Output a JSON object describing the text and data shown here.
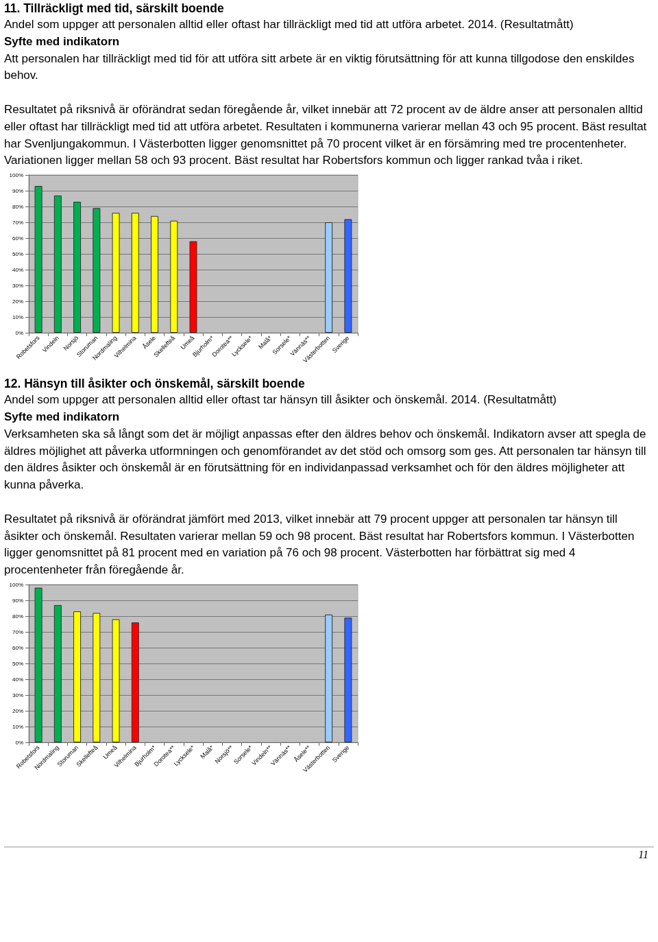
{
  "chart_data": [
    {
      "type": "bar",
      "title": "11. Tillräckligt med tid, särskilt boende",
      "subtitle": "Andel som uppger att personalen alltid eller oftast har tillräckligt med tid att utföra arbetet. 2014. (Resultatmått)",
      "annotations": [
        "Syfte med indikatorn",
        "Att personalen har tillräckligt med tid för att utföra sitt arbete är en viktig förutsättning för att kunna tillgodose den enskildes behov.",
        "Resultatet på riksnivå är oförändrat sedan föregående år, vilket innebär att 72 procent av de äldre anser att personalen alltid eller oftast har tillräckligt med tid att utföra arbetet. Resultaten i kommunerna varierar mellan 43 och 95 procent. Bäst resultat har Svenljungakommun. I Västerbotten ligger genomsnittet på 70 procent vilket är en försämring med tre procentenheter. Variationen ligger mellan 58 och 93 procent. Bäst resultat har Robertsfors kommun och ligger rankad tvåa i riket."
      ],
      "categories": [
        "Robetsfors",
        "Vindeln",
        "Norsjö",
        "Storuman",
        "Nordmaling",
        "Vilhelmina",
        "Åsele",
        "Skellefteå",
        "Umeå",
        "Bjurholm*",
        "Dorotea**",
        "Lycksele*",
        "Malå*",
        "Sorsele*",
        "Vännäs**",
        "Västerbotten",
        "Sverige"
      ],
      "values": [
        93,
        87,
        83,
        79,
        76,
        76,
        74,
        71,
        58,
        null,
        null,
        null,
        null,
        null,
        null,
        70,
        72
      ],
      "colors": [
        "#00b050",
        "#00b050",
        "#00b050",
        "#00b050",
        "#ffff00",
        "#ffff00",
        "#ffff00",
        "#ffff00",
        "#ff0000",
        "#ff0000",
        "#ff0000",
        "#ff0000",
        "#ff0000",
        "#ff0000",
        "#ff0000",
        "#99ccff",
        "#3366ff"
      ],
      "ylim": [
        0,
        100
      ],
      "yticks": [
        {
          "value": 0,
          "label": "0%"
        },
        {
          "value": 10,
          "label": "10%"
        },
        {
          "value": 20,
          "label": "20%"
        },
        {
          "value": 30,
          "label": "30%"
        },
        {
          "value": 40,
          "label": "40%"
        },
        {
          "value": 50,
          "label": "50%"
        },
        {
          "value": 60,
          "label": "60%"
        },
        {
          "value": 70,
          "label": "70%"
        },
        {
          "value": 80,
          "label": "80%"
        },
        {
          "value": 90,
          "label": "90%"
        },
        {
          "value": 100,
          "label": "100%"
        }
      ],
      "grid": "y"
    },
    {
      "type": "bar",
      "title": "12. Hänsyn till åsikter och önskemål, särskilt boende",
      "subtitle": "Andel som uppger att personalen alltid eller oftast tar hänsyn till åsikter och önskemål. 2014. (Resultatmått)",
      "annotations": [
        "Syfte med indikatorn",
        "Verksamheten ska så långt som det är möjligt anpassas efter den äldres behov och önskemål. Indikatorn avser att spegla de äldres möjlighet att påverka utformningen och genomförandet av det stöd och omsorg som ges. Att personalen tar hänsyn till den äldres åsikter och önskemål är en förutsättning för en individanpassad verksamhet och för den äldres möjligheter att kunna påverka.",
        "Resultatet på riksnivå är oförändrat jämfört med 2013, vilket innebär att 79 procent uppger att personalen tar hänsyn till åsikter och önskemål. Resultaten varierar mellan 59 och 98 procent. Bäst resultat har Robertsfors kommun. I Västerbotten ligger genomsnittet på 81 procent med en variation på 76 och 98 procent. Västerbotten har förbättrat sig med 4 procentenheter från föregående år.",
        "11"
      ],
      "categories": [
        "Robetsfors",
        "Nordmaling",
        "Storuman",
        "Skellefteå",
        "Umeå",
        "Vilhelmina",
        "Bjurholm*",
        "Dorotea**",
        "Lycksele*",
        "Malå*",
        "Norsjö**",
        "Sorsele*",
        "Vindeln**",
        "Vännäs**",
        "Åsele**",
        "Västerbotten",
        "Sverige"
      ],
      "values": [
        98,
        87,
        83,
        82,
        78,
        76,
        null,
        null,
        null,
        null,
        null,
        null,
        null,
        null,
        null,
        81,
        79
      ],
      "colors": [
        "#00b050",
        "#00b050",
        "#ffff00",
        "#ffff00",
        "#ffff00",
        "#ff0000",
        "#ff0000",
        "#ff0000",
        "#ff0000",
        "#ff0000",
        "#ff0000",
        "#ff0000",
        "#ff0000",
        "#ff0000",
        "#ff0000",
        "#99ccff",
        "#3366ff"
      ],
      "ylim": [
        0,
        100
      ],
      "yticks": [
        {
          "value": 0,
          "label": "0%"
        },
        {
          "value": 10,
          "label": "10%"
        },
        {
          "value": 20,
          "label": "20%"
        },
        {
          "value": 30,
          "label": "30%"
        },
        {
          "value": 40,
          "label": "40%"
        },
        {
          "value": 50,
          "label": "50%"
        },
        {
          "value": 60,
          "label": "60%"
        },
        {
          "value": 70,
          "label": "70%"
        },
        {
          "value": 80,
          "label": "80%"
        },
        {
          "value": 90,
          "label": "90%"
        },
        {
          "value": 100,
          "label": "100%"
        }
      ],
      "grid": "y"
    }
  ]
}
